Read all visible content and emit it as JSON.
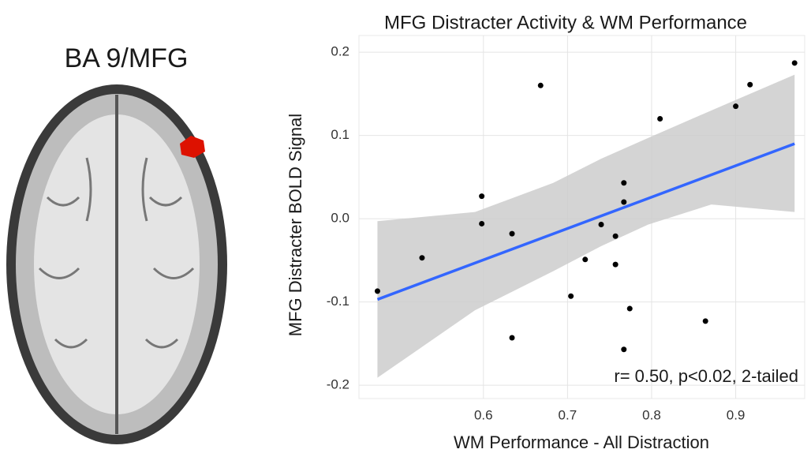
{
  "panel_title": "BA 9/MFG",
  "chart_data": {
    "type": "scatter",
    "title": "MFG Distracter Activity & WM Performance",
    "x_label": "WM Performance - All Distraction",
    "y_label": "MFG Distracter BOLD Signal",
    "annotation": "r= 0.50, p<0.02, 2-tailed",
    "xlim": [
      0.452,
      0.982
    ],
    "ylim": [
      -0.216,
      0.22
    ],
    "xticks": [
      0.6,
      0.7,
      0.8,
      0.9
    ],
    "yticks": [
      0.2,
      0.1,
      {
        "value": 0,
        "label": "0.0"
      },
      -0.1,
      -0.2
    ],
    "grid": true,
    "point_color": "#000000",
    "x": [
      0.474,
      0.527,
      0.598,
      0.598,
      0.634,
      0.634,
      0.668,
      0.704,
      0.721,
      0.74,
      0.757,
      0.757,
      0.774,
      0.767,
      0.767,
      0.767,
      0.81,
      0.864,
      0.9,
      0.917,
      0.97
    ],
    "values": [
      -0.087,
      -0.047,
      0.027,
      -0.006,
      -0.018,
      -0.143,
      0.16,
      -0.093,
      -0.049,
      -0.007,
      -0.021,
      -0.055,
      -0.108,
      0.043,
      0.02,
      -0.157,
      0.12,
      -0.123,
      0.135,
      0.161,
      0.187
    ],
    "fit": {
      "color": "#3366ff",
      "x": [
        0.474,
        0.97
      ],
      "values": [
        -0.097,
        0.09
      ]
    },
    "band": {
      "color": "#cccccc",
      "x": [
        0.474,
        0.59,
        0.683,
        0.74,
        0.796,
        0.871,
        0.97
      ],
      "upper": [
        -0.003,
        0.008,
        0.043,
        0.072,
        0.097,
        0.13,
        0.173
      ],
      "lower": [
        -0.191,
        -0.11,
        -0.063,
        -0.033,
        -0.007,
        0.017,
        0.008
      ]
    }
  }
}
